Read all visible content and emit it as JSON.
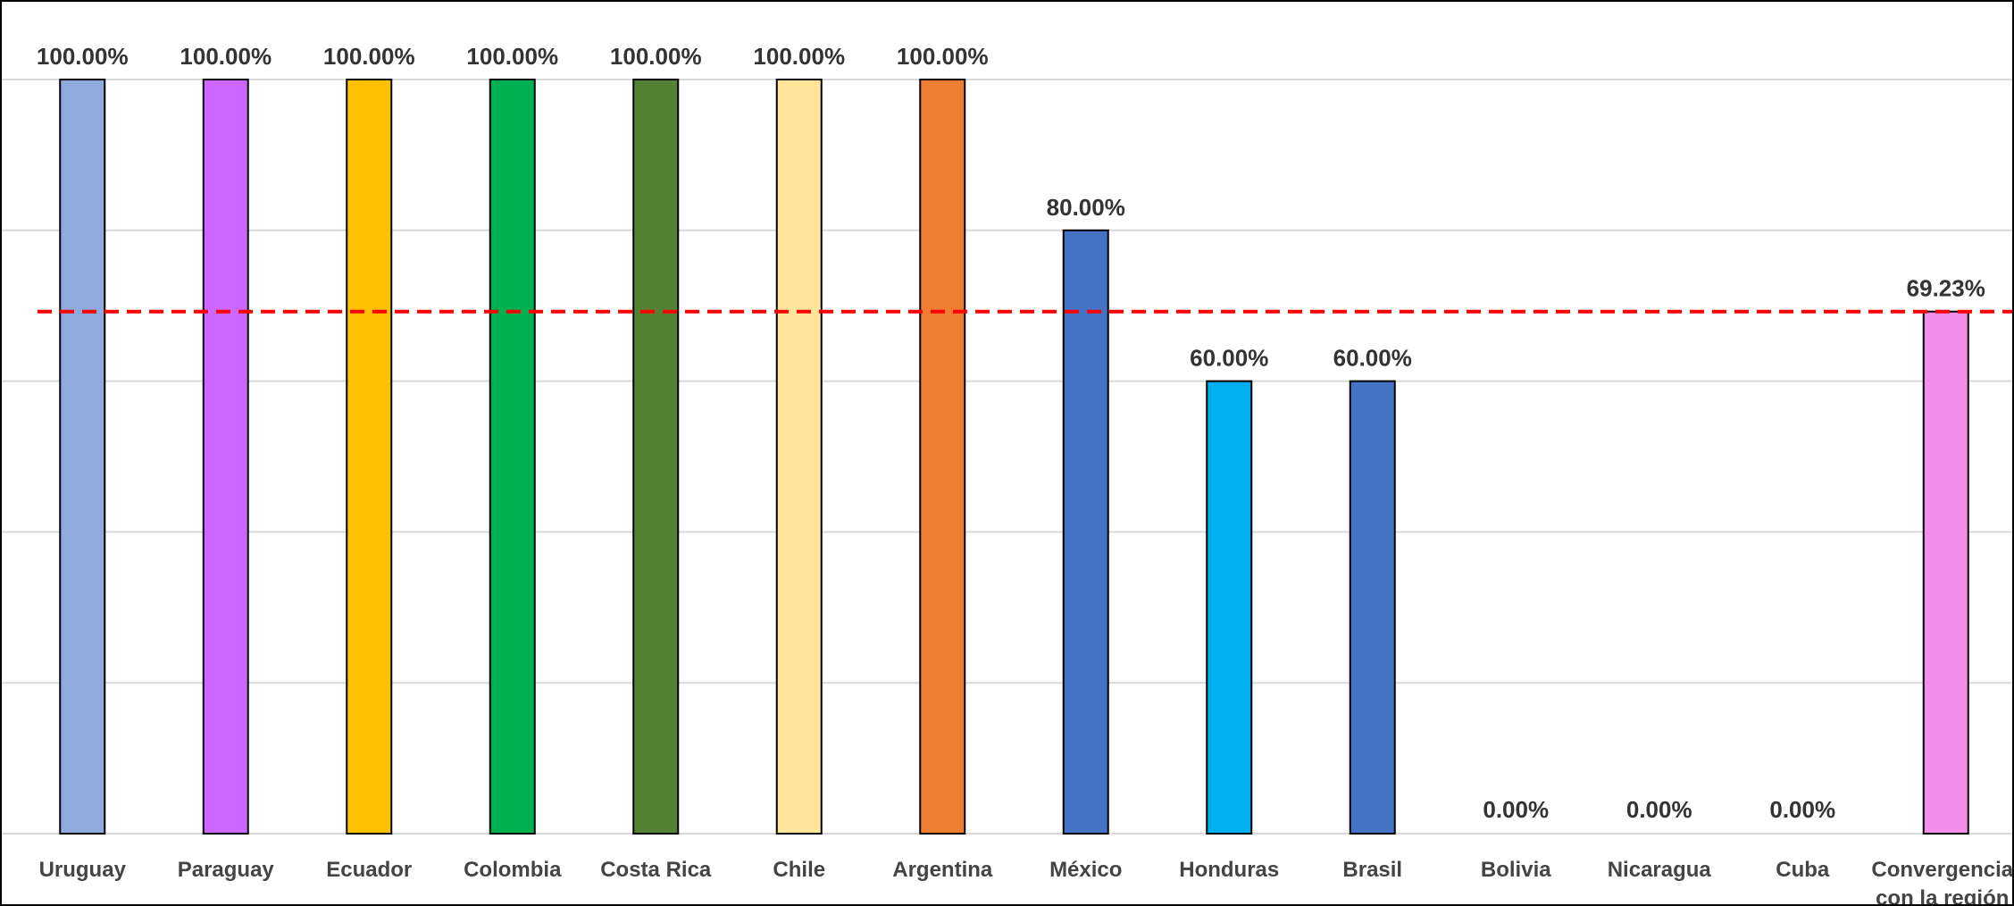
{
  "chart_data": {
    "type": "bar",
    "title": "",
    "xlabel": "",
    "ylabel": "",
    "ylim": [
      0,
      1.1
    ],
    "grid": true,
    "legend": "none",
    "categories": [
      "Uruguay",
      "Paraguay",
      "Ecuador",
      "Colombia",
      "Costa Rica",
      "Chile",
      "Argentina",
      "México",
      "Honduras",
      "Brasil",
      "Bolivia",
      "Nicaragua",
      "Cuba",
      "Convergencia con la región"
    ],
    "category_lines": [
      [
        "Uruguay"
      ],
      [
        "Paraguay"
      ],
      [
        "Ecuador"
      ],
      [
        "Colombia"
      ],
      [
        "Costa Rica"
      ],
      [
        "Chile"
      ],
      [
        "Argentina"
      ],
      [
        "México"
      ],
      [
        "Honduras"
      ],
      [
        "Brasil"
      ],
      [
        "Bolivia"
      ],
      [
        "Nicaragua"
      ],
      [
        "Cuba"
      ],
      [
        "Convergencia",
        "con la región"
      ]
    ],
    "values": [
      1.0,
      1.0,
      1.0,
      1.0,
      1.0,
      1.0,
      1.0,
      0.8,
      0.6,
      0.6,
      0.0,
      0.0,
      0.0,
      0.6923
    ],
    "data_labels": [
      "100.00%",
      "100.00%",
      "100.00%",
      "100.00%",
      "100.00%",
      "100.00%",
      "100.00%",
      "80.00%",
      "60.00%",
      "60.00%",
      "0.00%",
      "0.00%",
      "0.00%",
      "69.23%"
    ],
    "bar_colors": [
      "#8FAADC",
      "#CC66FF",
      "#FFC000",
      "#00B050",
      "#548235",
      "#FFE699",
      "#ED7D31",
      "#4472C4",
      "#00B0F0",
      "#4472C4",
      "#A5A5A5",
      "#A5A5A5",
      "#A5A5A5",
      "#F28EEA"
    ],
    "reference_line": {
      "value": 0.6923,
      "color": "#FF0000",
      "style": "dashed"
    },
    "gridline_values": [
      0.2,
      0.4,
      0.6,
      0.8,
      1.0
    ],
    "gridline_color": "#D9D9D9",
    "bar_outline_color": "#000000"
  }
}
